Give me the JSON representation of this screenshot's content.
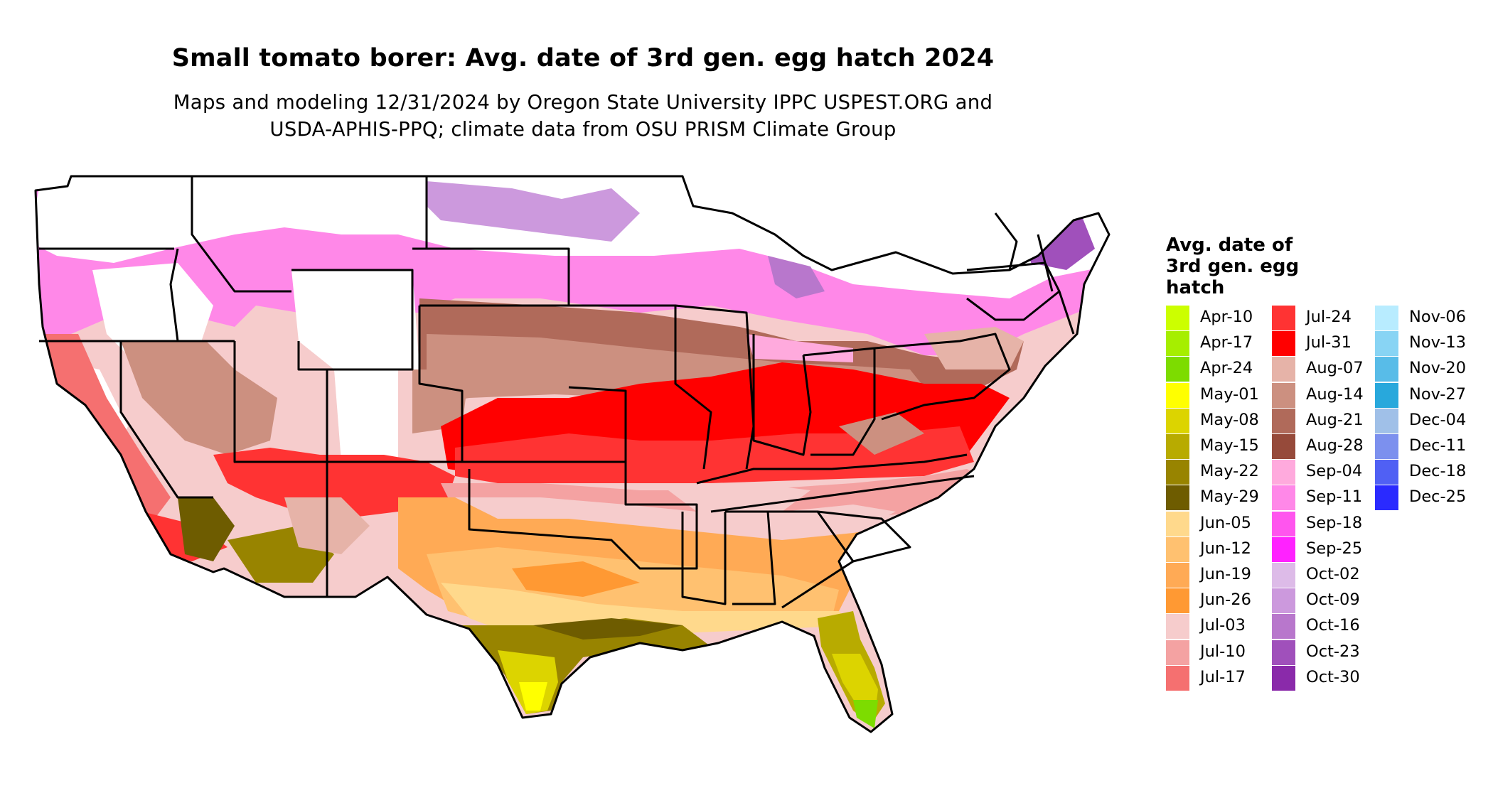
{
  "title": "Small tomato borer: Avg. date of 3rd gen. egg hatch 2024",
  "subtitle_lines": [
    "Maps and modeling 12/31/2024 by Oregon State University IPPC USPEST.ORG and",
    "USDA-APHIS-PPQ; climate data from OSU PRISM Climate Group"
  ],
  "legend": {
    "title_lines": [
      "Avg. date of",
      "3rd gen. egg",
      "hatch"
    ],
    "columns": [
      [
        {
          "label": "Apr-10",
          "color": "#ccff00"
        },
        {
          "label": "Apr-17",
          "color": "#a6ee00"
        },
        {
          "label": "Apr-24",
          "color": "#7ddc00"
        },
        {
          "label": "May-01",
          "color": "#ffff00"
        },
        {
          "label": "May-08",
          "color": "#dcd400"
        },
        {
          "label": "May-15",
          "color": "#b8ab00"
        },
        {
          "label": "May-22",
          "color": "#988400"
        },
        {
          "label": "May-29",
          "color": "#6e5c00"
        },
        {
          "label": "Jun-05",
          "color": "#ffd98c"
        },
        {
          "label": "Jun-12",
          "color": "#ffc170"
        },
        {
          "label": "Jun-19",
          "color": "#ffaa55"
        },
        {
          "label": "Jun-26",
          "color": "#ff9933"
        },
        {
          "label": "Jul-03",
          "color": "#f6cccc"
        },
        {
          "label": "Jul-10",
          "color": "#f4a2a2"
        },
        {
          "label": "Jul-17",
          "color": "#f57070"
        }
      ],
      [
        {
          "label": "Jul-24",
          "color": "#ff3333"
        },
        {
          "label": "Jul-31",
          "color": "#ff0000"
        },
        {
          "label": "Aug-07",
          "color": "#e6b3a8"
        },
        {
          "label": "Aug-14",
          "color": "#cc9080"
        },
        {
          "label": "Aug-21",
          "color": "#b06a5a"
        },
        {
          "label": "Aug-28",
          "color": "#964a3a"
        },
        {
          "label": "Sep-04",
          "color": "#ffaadd"
        },
        {
          "label": "Sep-11",
          "color": "#ff88e8"
        },
        {
          "label": "Sep-18",
          "color": "#ff55ee"
        },
        {
          "label": "Sep-25",
          "color": "#ff22ff"
        },
        {
          "label": "Oct-02",
          "color": "#ddbbe8"
        },
        {
          "label": "Oct-09",
          "color": "#cc99dd"
        },
        {
          "label": "Oct-16",
          "color": "#b877cc"
        },
        {
          "label": "Oct-23",
          "color": "#a050bb"
        },
        {
          "label": "Oct-30",
          "color": "#8a2aaa"
        }
      ],
      [
        {
          "label": "Nov-06",
          "color": "#b8ecff"
        },
        {
          "label": "Nov-13",
          "color": "#88d4f4"
        },
        {
          "label": "Nov-20",
          "color": "#58bce8"
        },
        {
          "label": "Nov-27",
          "color": "#28a8dc"
        },
        {
          "label": "Dec-04",
          "color": "#a0c0e8"
        },
        {
          "label": "Dec-11",
          "color": "#7c90ee"
        },
        {
          "label": "Dec-18",
          "color": "#5060f4"
        },
        {
          "label": "Dec-25",
          "color": "#2a2aff"
        }
      ]
    ]
  },
  "colors": {
    "state_border": "#000000",
    "no_data": "#ffffff",
    "background": "#ffffff"
  }
}
